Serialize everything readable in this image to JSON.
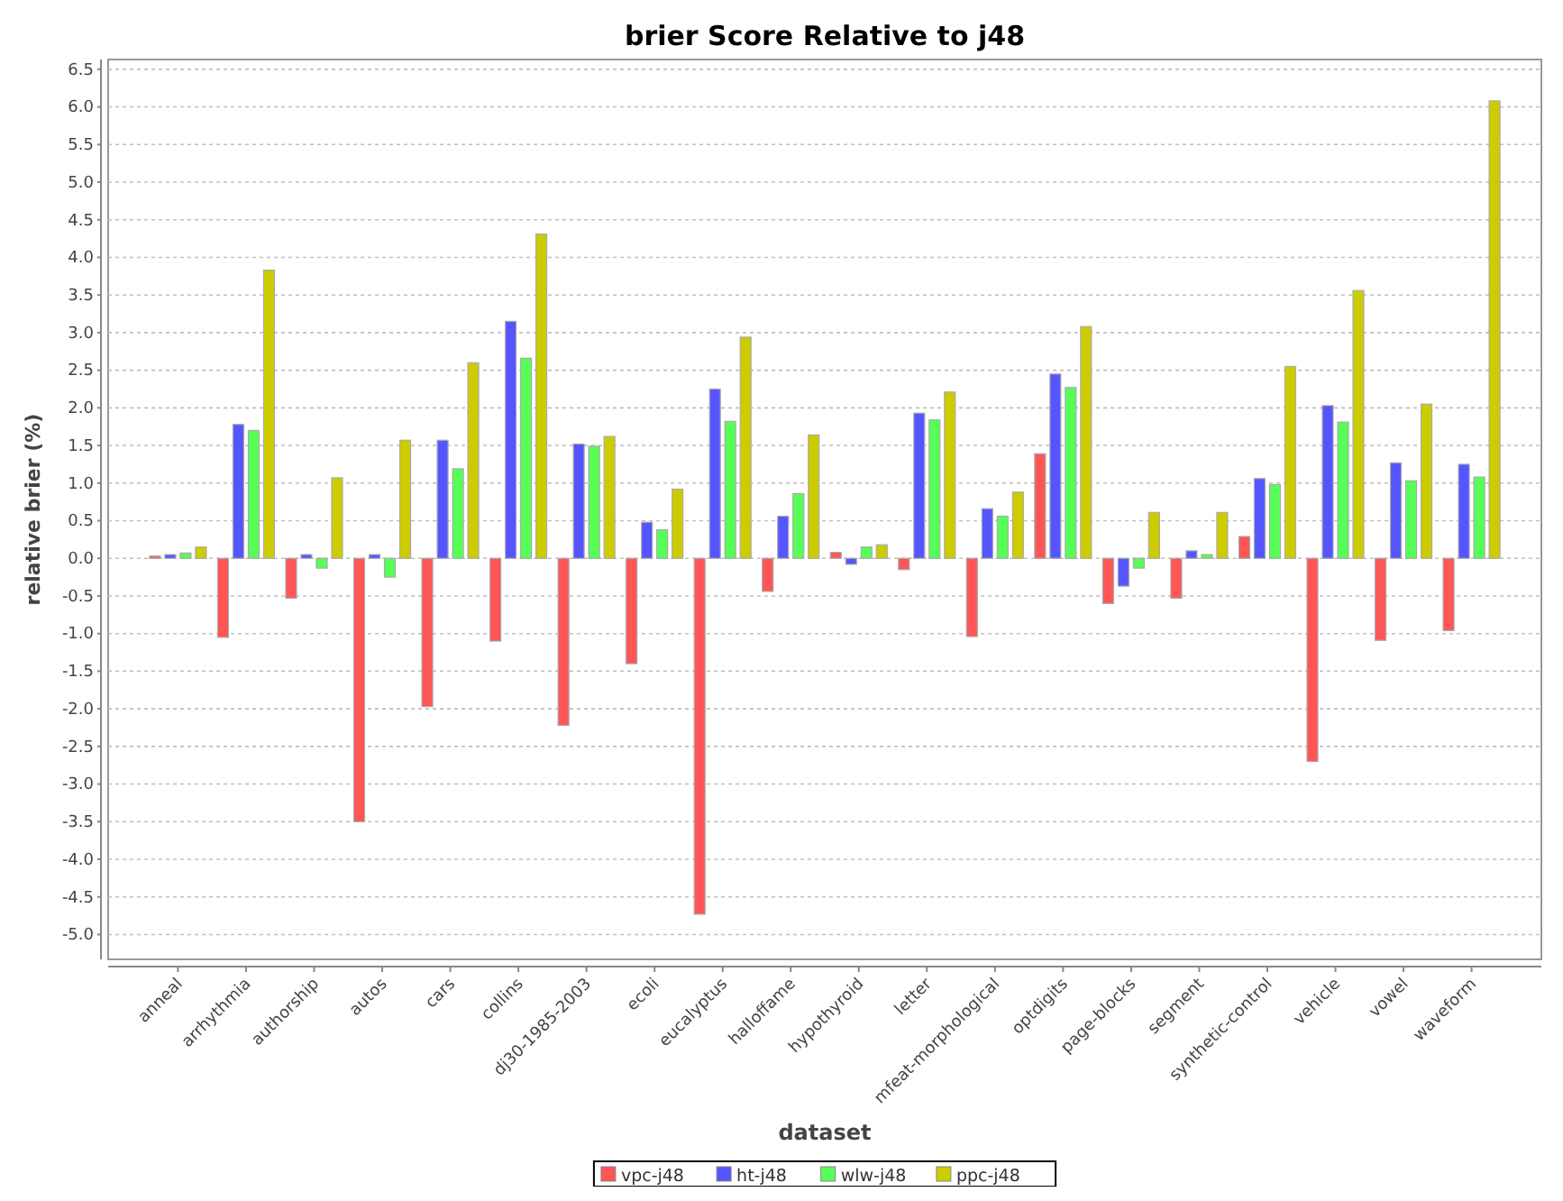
{
  "chart_data": {
    "type": "bar",
    "title": "brier Score Relative to j48",
    "xlabel": "dataset",
    "ylabel": "relative brier (%)",
    "categories": [
      "anneal",
      "arrhythmia",
      "authorship",
      "autos",
      "cars",
      "collins",
      "dj30-1985-2003",
      "ecoli",
      "eucalyptus",
      "halloffame",
      "hypothyroid",
      "letter",
      "mfeat-morphological",
      "optdigits",
      "page-blocks",
      "segment",
      "synthetic-control",
      "vehicle",
      "vowel",
      "waveform"
    ],
    "series": [
      {
        "name": "vpc-j48",
        "color": "#ff5555",
        "values": [
          0.03,
          -1.05,
          -0.53,
          -3.5,
          -1.97,
          -1.1,
          -2.22,
          -1.4,
          -4.73,
          -0.44,
          0.08,
          -0.15,
          -1.04,
          1.39,
          -0.6,
          -0.53,
          0.29,
          -2.7,
          -1.09,
          -0.96
        ]
      },
      {
        "name": "ht-j48",
        "color": "#5555ff",
        "values": [
          0.05,
          1.78,
          0.05,
          0.05,
          1.57,
          3.15,
          1.52,
          0.48,
          2.25,
          0.56,
          -0.08,
          1.93,
          0.66,
          2.45,
          -0.37,
          0.1,
          1.06,
          2.03,
          1.27,
          1.25
        ]
      },
      {
        "name": "wlw-j48",
        "color": "#55ff55",
        "values": [
          0.07,
          1.7,
          -0.13,
          -0.25,
          1.19,
          2.66,
          1.49,
          0.38,
          1.82,
          0.86,
          0.15,
          1.84,
          0.56,
          2.27,
          -0.13,
          0.05,
          0.98,
          1.81,
          1.03,
          1.08
        ]
      },
      {
        "name": "ppc-j48",
        "color": "#cccc00",
        "values": [
          0.15,
          3.83,
          1.07,
          1.57,
          2.6,
          4.31,
          1.62,
          0.92,
          2.94,
          1.64,
          0.18,
          2.21,
          0.88,
          3.08,
          0.61,
          0.61,
          2.55,
          3.56,
          2.05,
          6.08
        ]
      }
    ],
    "ylim": [
      -5.33,
      6.63
    ],
    "yticks": [
      {
        "value": -5,
        "label": "-5.0"
      },
      {
        "value": -4.5,
        "label": "-4.5"
      },
      {
        "value": -4,
        "label": "-4.0"
      },
      {
        "value": -3.5,
        "label": "-3.5"
      },
      {
        "value": -3,
        "label": "-3.0"
      },
      {
        "value": -2.5,
        "label": "-2.5"
      },
      {
        "value": -2,
        "label": "-2.0"
      },
      {
        "value": -1.5,
        "label": "-1.5"
      },
      {
        "value": -1,
        "label": "-1.0"
      },
      {
        "value": -0.5,
        "label": "-0.5"
      },
      {
        "value": 0,
        "label": "0.0"
      },
      {
        "value": 0.5,
        "label": "0.5"
      },
      {
        "value": 1,
        "label": "1.0"
      },
      {
        "value": 1.5,
        "label": "1.5"
      },
      {
        "value": 2,
        "label": "2.0"
      },
      {
        "value": 2.5,
        "label": "2.5"
      },
      {
        "value": 3,
        "label": "3.0"
      },
      {
        "value": 3.5,
        "label": "3.5"
      },
      {
        "value": 4,
        "label": "4.0"
      },
      {
        "value": 4.5,
        "label": "4.5"
      },
      {
        "value": 5,
        "label": "5.0"
      },
      {
        "value": 5.5,
        "label": "5.5"
      },
      {
        "value": 6,
        "label": "6.0"
      },
      {
        "value": 6.5,
        "label": "6.5"
      }
    ],
    "grid": "y",
    "legend": "bottom"
  }
}
